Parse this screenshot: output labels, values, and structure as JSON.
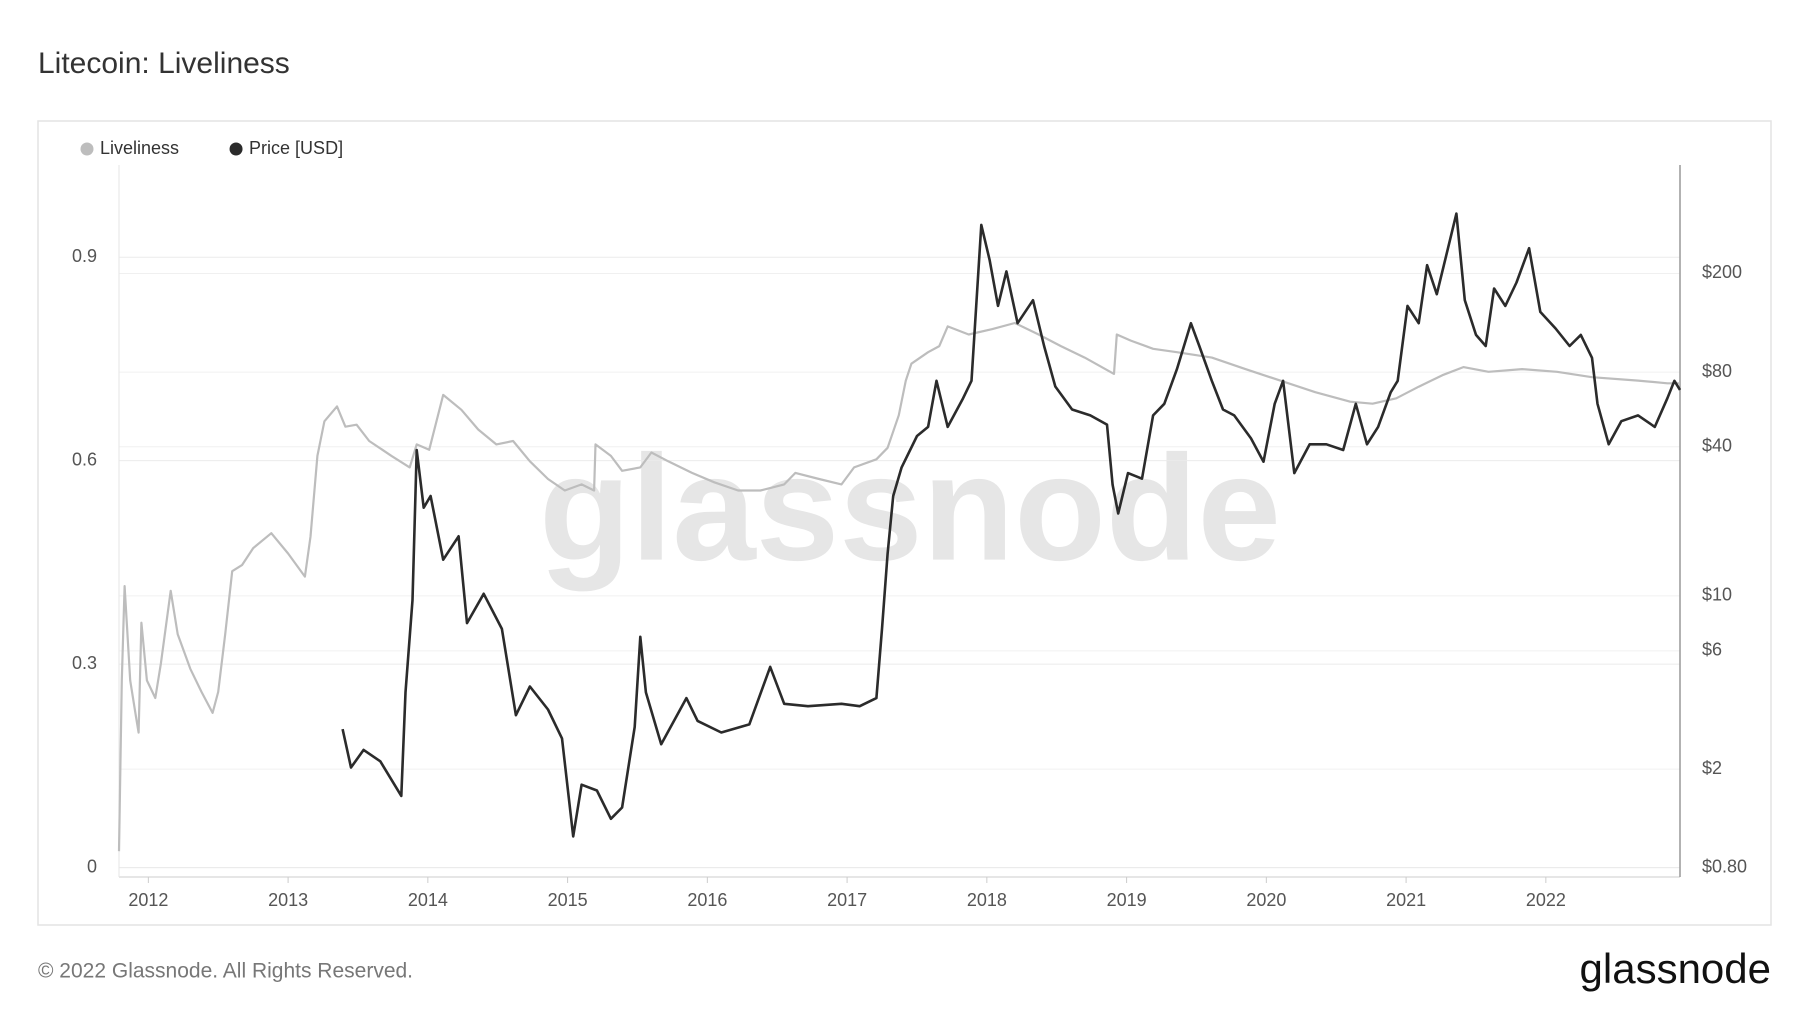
{
  "chart_data": {
    "type": "line",
    "title": "Litecoin: Liveliness",
    "watermark": "glassnode",
    "footer": "© 2022 Glassnode. All Rights Reserved.",
    "logo": "glassnode",
    "xlim": [
      2011.79,
      2022.96
    ],
    "xticks": [
      2012,
      2013,
      2014,
      2015,
      2016,
      2017,
      2018,
      2019,
      2020,
      2021,
      2022
    ],
    "ylim": [
      -0.014,
      1.036
    ],
    "yticks": [
      0,
      0.3,
      0.6,
      0.9
    ],
    "y2lim": [
      0.734,
      548
    ],
    "y2log": true,
    "y2ticks": [
      {
        "value": 0.8,
        "label": "$0.80"
      },
      {
        "value": 2,
        "label": "$2"
      },
      {
        "value": 6,
        "label": "$6"
      },
      {
        "value": 10,
        "label": "$10"
      },
      {
        "value": 40,
        "label": "$40"
      },
      {
        "value": 80,
        "label": "$80"
      },
      {
        "value": 200,
        "label": "$200"
      }
    ],
    "grid": true,
    "legend": "top-left",
    "series": [
      {
        "name": "Liveliness",
        "color": "#bdbdbd",
        "x": [
          2011.79,
          2011.81,
          2011.83,
          2011.87,
          2011.91,
          2011.93,
          2011.95,
          2011.99,
          2012.05,
          2012.09,
          2012.16,
          2012.21,
          2012.3,
          2012.38,
          2012.46,
          2012.5,
          2012.55,
          2012.6,
          2012.67,
          2012.75,
          2012.88,
          2013.0,
          2013.12,
          2013.16,
          2013.21,
          2013.26,
          2013.35,
          2013.41,
          2013.49,
          2013.58,
          2013.74,
          2013.87,
          2013.92,
          2014.01,
          2014.11,
          2014.24,
          2014.36,
          2014.49,
          2014.61,
          2014.73,
          2014.86,
          2014.98,
          2015.1,
          2015.19,
          2015.2,
          2015.31,
          2015.39,
          2015.52,
          2015.6,
          2015.72,
          2015.89,
          2016.05,
          2016.22,
          2016.38,
          2016.55,
          2016.63,
          2016.8,
          2016.96,
          2017.05,
          2017.21,
          2017.29,
          2017.37,
          2017.42,
          2017.46,
          2017.58,
          2017.66,
          2017.72,
          2017.87,
          2018.04,
          2018.2,
          2018.37,
          2018.53,
          2018.7,
          2018.91,
          2018.93,
          2019.03,
          2019.19,
          2019.36,
          2019.61,
          2019.85,
          2020.1,
          2020.35,
          2020.6,
          2020.76,
          2020.93,
          2021.09,
          2021.26,
          2021.41,
          2021.59,
          2021.83,
          2022.08,
          2022.33,
          2022.66,
          2022.87,
          2022.96
        ],
        "values": [
          0.024,
          0.276,
          0.415,
          0.276,
          0.224,
          0.199,
          0.361,
          0.276,
          0.25,
          0.301,
          0.408,
          0.344,
          0.293,
          0.259,
          0.228,
          0.259,
          0.344,
          0.437,
          0.446,
          0.471,
          0.493,
          0.463,
          0.429,
          0.488,
          0.607,
          0.658,
          0.68,
          0.65,
          0.653,
          0.629,
          0.607,
          0.59,
          0.624,
          0.616,
          0.697,
          0.675,
          0.646,
          0.624,
          0.629,
          0.599,
          0.573,
          0.556,
          0.565,
          0.556,
          0.624,
          0.607,
          0.585,
          0.59,
          0.612,
          0.599,
          0.582,
          0.568,
          0.556,
          0.556,
          0.565,
          0.582,
          0.573,
          0.565,
          0.59,
          0.602,
          0.619,
          0.667,
          0.718,
          0.743,
          0.76,
          0.769,
          0.798,
          0.786,
          0.794,
          0.803,
          0.786,
          0.769,
          0.752,
          0.728,
          0.786,
          0.777,
          0.765,
          0.76,
          0.752,
          0.735,
          0.718,
          0.701,
          0.687,
          0.684,
          0.692,
          0.709,
          0.726,
          0.738,
          0.731,
          0.735,
          0.731,
          0.723,
          0.718,
          0.714,
          0.714
        ]
      },
      {
        "name": "Price [USD]",
        "color": "#2b2b2b",
        "axis": "y2",
        "x": [
          2013.39,
          2013.45,
          2013.54,
          2013.66,
          2013.81,
          2013.84,
          2013.89,
          2013.92,
          2013.97,
          2014.02,
          2014.11,
          2014.22,
          2014.28,
          2014.4,
          2014.53,
          2014.63,
          2014.73,
          2014.86,
          2014.96,
          2015.04,
          2015.1,
          2015.21,
          2015.31,
          2015.39,
          2015.48,
          2015.52,
          2015.56,
          2015.67,
          2015.85,
          2015.93,
          2016.1,
          2016.3,
          2016.45,
          2016.55,
          2016.72,
          2016.96,
          2017.09,
          2017.21,
          2017.25,
          2017.29,
          2017.33,
          2017.39,
          2017.5,
          2017.58,
          2017.64,
          2017.72,
          2017.83,
          2017.89,
          2017.96,
          2018.02,
          2018.08,
          2018.14,
          2018.22,
          2018.33,
          2018.41,
          2018.49,
          2018.61,
          2018.74,
          2018.86,
          2018.9,
          2018.94,
          2019.01,
          2019.11,
          2019.19,
          2019.27,
          2019.36,
          2019.46,
          2019.52,
          2019.61,
          2019.69,
          2019.77,
          2019.89,
          2019.98,
          2020.06,
          2020.12,
          2020.2,
          2020.31,
          2020.43,
          2020.55,
          2020.64,
          2020.72,
          2020.8,
          2020.89,
          2020.94,
          2021.01,
          2021.09,
          2021.15,
          2021.22,
          2021.3,
          2021.36,
          2021.42,
          2021.5,
          2021.57,
          2021.63,
          2021.71,
          2021.79,
          2021.88,
          2021.96,
          2022.07,
          2022.17,
          2022.25,
          2022.33,
          2022.37,
          2022.45,
          2022.54,
          2022.66,
          2022.78,
          2022.87,
          2022.92,
          2022.96
        ],
        "values": [
          2.9,
          2.03,
          2.39,
          2.15,
          1.56,
          4.08,
          9.62,
          38.8,
          22.7,
          25.3,
          14.0,
          17.4,
          7.77,
          10.2,
          7.36,
          3.3,
          4.31,
          3.48,
          2.66,
          1.07,
          1.73,
          1.64,
          1.26,
          1.4,
          2.96,
          6.84,
          4.08,
          2.52,
          3.87,
          3.13,
          2.81,
          3.03,
          5.17,
          3.67,
          3.59,
          3.67,
          3.59,
          3.87,
          7.36,
          14.8,
          25.3,
          33.0,
          44.2,
          48.1,
          73.8,
          48.1,
          62.8,
          73.8,
          314,
          227,
          148,
          204,
          126,
          156,
          102,
          70,
          56.5,
          53.5,
          49.1,
          28.1,
          21.5,
          31.3,
          29.7,
          53.5,
          59.6,
          82.2,
          126,
          102,
          73.8,
          56.5,
          53.5,
          43.2,
          34.8,
          59.6,
          73.8,
          31.3,
          40.9,
          40.9,
          38.8,
          59.6,
          40.9,
          48.1,
          66.3,
          73.8,
          148,
          126,
          216,
          165,
          253,
          349,
          156,
          113,
          102,
          174,
          148,
          184,
          253,
          140,
          120,
          102,
          113,
          91.4,
          59.6,
          40.9,
          50.7,
          53.5,
          48.1,
          62.8,
          73.8,
          67.8
        ]
      }
    ]
  }
}
